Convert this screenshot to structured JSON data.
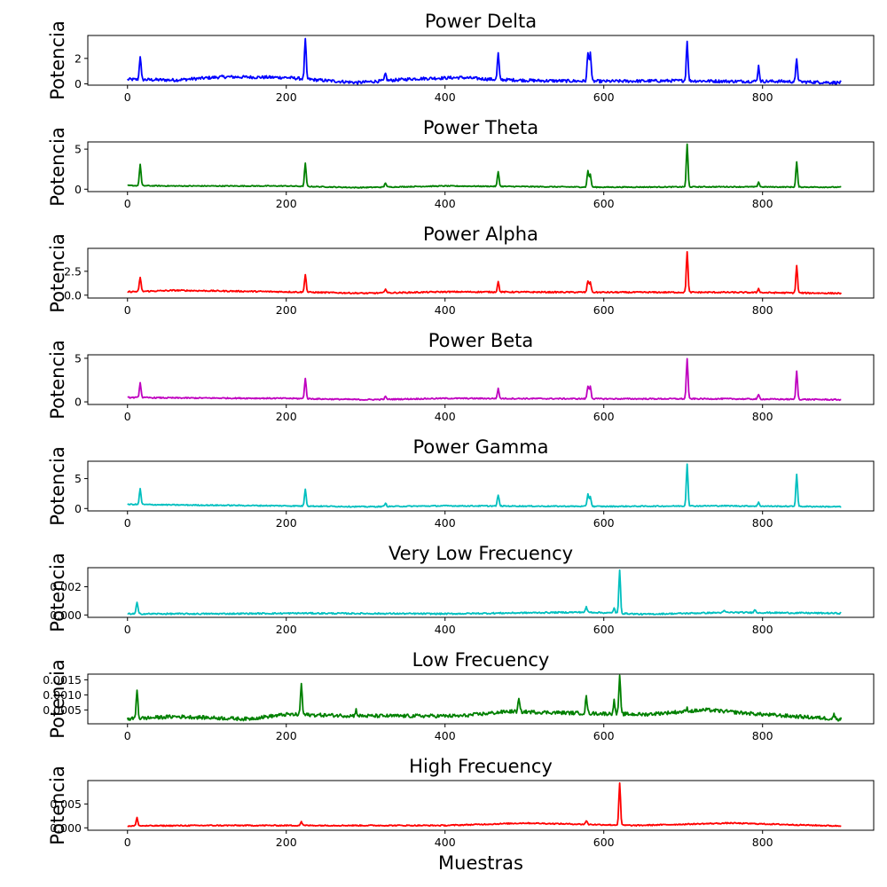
{
  "chart_data": [
    {
      "type": "line",
      "title": "Power Delta",
      "ylabel": "Potencia",
      "xlabel": "",
      "color": "#0000ff",
      "xlim": [
        -50,
        940
      ],
      "ylim": [
        -0.1,
        3.8
      ],
      "xticks": [
        {
          "v": 0,
          "label": "0"
        },
        {
          "v": 200,
          "label": "200"
        },
        {
          "v": 400,
          "label": "400"
        },
        {
          "v": 600,
          "label": "600"
        },
        {
          "v": 800,
          "label": "800"
        }
      ],
      "yticks": [
        {
          "v": 0,
          "label": "0"
        },
        {
          "v": 2,
          "label": "2"
        }
      ],
      "baseline": [
        [
          0,
          0.35
        ],
        [
          60,
          0.3
        ],
        [
          120,
          0.55
        ],
        [
          200,
          0.5
        ],
        [
          240,
          0.3
        ],
        [
          290,
          0.1
        ],
        [
          360,
          0.4
        ],
        [
          420,
          0.5
        ],
        [
          460,
          0.35
        ],
        [
          520,
          0.25
        ],
        [
          600,
          0.2
        ],
        [
          700,
          0.25
        ],
        [
          760,
          0.2
        ],
        [
          820,
          0.2
        ],
        [
          895,
          0.1
        ]
      ],
      "peaks": [
        [
          16,
          2.2
        ],
        [
          224,
          3.5
        ],
        [
          325,
          0.8
        ],
        [
          467,
          2.4
        ],
        [
          580,
          2.4
        ],
        [
          583,
          2.5
        ],
        [
          705,
          3.4
        ],
        [
          795,
          1.4
        ],
        [
          843,
          2.0
        ]
      ],
      "noise": 0.12
    },
    {
      "type": "line",
      "title": "Power Theta",
      "ylabel": "Potencia",
      "xlabel": "",
      "color": "#008000",
      "xlim": [
        -50,
        940
      ],
      "ylim": [
        -0.3,
        5.9
      ],
      "xticks": [
        {
          "v": 0,
          "label": "0"
        },
        {
          "v": 200,
          "label": "200"
        },
        {
          "v": 400,
          "label": "400"
        },
        {
          "v": 600,
          "label": "600"
        },
        {
          "v": 800,
          "label": "800"
        }
      ],
      "yticks": [
        {
          "v": 0,
          "label": "0"
        },
        {
          "v": 5,
          "label": "5"
        }
      ],
      "baseline": [
        [
          0,
          0.45
        ],
        [
          60,
          0.4
        ],
        [
          200,
          0.4
        ],
        [
          290,
          0.2
        ],
        [
          400,
          0.4
        ],
        [
          600,
          0.25
        ],
        [
          750,
          0.3
        ],
        [
          895,
          0.25
        ]
      ],
      "peaks": [
        [
          16,
          3.1
        ],
        [
          224,
          3.2
        ],
        [
          325,
          0.8
        ],
        [
          467,
          2.2
        ],
        [
          580,
          2.3
        ],
        [
          583,
          1.8
        ],
        [
          705,
          5.6
        ],
        [
          795,
          0.9
        ],
        [
          843,
          3.4
        ]
      ],
      "noise": 0.06
    },
    {
      "type": "line",
      "title": "Power Alpha",
      "ylabel": "Potencia",
      "xlabel": "",
      "color": "#ff0000",
      "xlim": [
        -50,
        940
      ],
      "ylim": [
        -0.3,
        4.9
      ],
      "xticks": [
        {
          "v": 0,
          "label": "0"
        },
        {
          "v": 200,
          "label": "200"
        },
        {
          "v": 400,
          "label": "400"
        },
        {
          "v": 600,
          "label": "600"
        },
        {
          "v": 800,
          "label": "800"
        }
      ],
      "yticks": [
        {
          "v": 0,
          "label": "0.0"
        },
        {
          "v": 2.5,
          "label": "2.5"
        }
      ],
      "baseline": [
        [
          0,
          0.35
        ],
        [
          60,
          0.5
        ],
        [
          200,
          0.35
        ],
        [
          300,
          0.2
        ],
        [
          400,
          0.35
        ],
        [
          600,
          0.3
        ],
        [
          750,
          0.3
        ],
        [
          895,
          0.2
        ]
      ],
      "peaks": [
        [
          16,
          1.9
        ],
        [
          224,
          2.2
        ],
        [
          325,
          0.7
        ],
        [
          467,
          1.4
        ],
        [
          580,
          1.5
        ],
        [
          583,
          1.4
        ],
        [
          705,
          4.6
        ],
        [
          795,
          0.7
        ],
        [
          843,
          3.1
        ]
      ],
      "noise": 0.07
    },
    {
      "type": "line",
      "title": "Power Beta",
      "ylabel": "Potencia",
      "xlabel": "",
      "color": "#bf00bf",
      "xlim": [
        -50,
        940
      ],
      "ylim": [
        -0.3,
        5.4
      ],
      "xticks": [
        {
          "v": 0,
          "label": "0"
        },
        {
          "v": 200,
          "label": "200"
        },
        {
          "v": 400,
          "label": "400"
        },
        {
          "v": 600,
          "label": "600"
        },
        {
          "v": 800,
          "label": "800"
        }
      ],
      "yticks": [
        {
          "v": 0,
          "label": "0"
        },
        {
          "v": 5,
          "label": "5"
        }
      ],
      "baseline": [
        [
          0,
          0.5
        ],
        [
          60,
          0.45
        ],
        [
          200,
          0.4
        ],
        [
          300,
          0.25
        ],
        [
          400,
          0.4
        ],
        [
          600,
          0.35
        ],
        [
          750,
          0.35
        ],
        [
          895,
          0.25
        ]
      ],
      "peaks": [
        [
          16,
          2.2
        ],
        [
          224,
          2.7
        ],
        [
          325,
          0.6
        ],
        [
          467,
          1.5
        ],
        [
          580,
          1.8
        ],
        [
          583,
          1.8
        ],
        [
          705,
          5.0
        ],
        [
          795,
          0.8
        ],
        [
          843,
          3.5
        ]
      ],
      "noise": 0.07
    },
    {
      "type": "line",
      "title": "Power Gamma",
      "ylabel": "Potencia",
      "xlabel": "",
      "color": "#00bfbf",
      "xlim": [
        -50,
        940
      ],
      "ylim": [
        -0.4,
        7.9
      ],
      "xticks": [
        {
          "v": 0,
          "label": "0"
        },
        {
          "v": 200,
          "label": "200"
        },
        {
          "v": 400,
          "label": "400"
        },
        {
          "v": 600,
          "label": "600"
        },
        {
          "v": 800,
          "label": "800"
        }
      ],
      "yticks": [
        {
          "v": 0,
          "label": "0"
        },
        {
          "v": 5,
          "label": "5"
        }
      ],
      "baseline": [
        [
          0,
          0.7
        ],
        [
          60,
          0.6
        ],
        [
          200,
          0.45
        ],
        [
          300,
          0.3
        ],
        [
          400,
          0.45
        ],
        [
          600,
          0.35
        ],
        [
          750,
          0.45
        ],
        [
          895,
          0.3
        ]
      ],
      "peaks": [
        [
          16,
          3.3
        ],
        [
          224,
          3.3
        ],
        [
          325,
          0.9
        ],
        [
          467,
          2.3
        ],
        [
          580,
          2.4
        ],
        [
          583,
          2.0
        ],
        [
          705,
          7.5
        ],
        [
          795,
          1.0
        ],
        [
          843,
          5.8
        ]
      ],
      "noise": 0.09
    },
    {
      "type": "line",
      "title": "Very Low Frecuency",
      "ylabel": "Potencia",
      "xlabel": "",
      "color": "#00bfbf",
      "xlim": [
        -50,
        940
      ],
      "ylim": [
        -0.00017,
        0.00335
      ],
      "xticks": [
        {
          "v": 0,
          "label": "0"
        },
        {
          "v": 200,
          "label": "200"
        },
        {
          "v": 400,
          "label": "400"
        },
        {
          "v": 600,
          "label": "600"
        },
        {
          "v": 800,
          "label": "800"
        }
      ],
      "yticks": [
        {
          "v": 0,
          "label": "0.000"
        },
        {
          "v": 0.002,
          "label": "0.002"
        }
      ],
      "baseline": [
        [
          0,
          8e-05
        ],
        [
          100,
          8e-05
        ],
        [
          220,
          0.00012
        ],
        [
          400,
          8e-05
        ],
        [
          500,
          0.00015
        ],
        [
          580,
          0.0002
        ],
        [
          650,
          5e-05
        ],
        [
          760,
          0.00018
        ],
        [
          895,
          0.00012
        ]
      ],
      "peaks": [
        [
          12,
          0.0009
        ],
        [
          578,
          0.00055
        ],
        [
          613,
          0.0005
        ],
        [
          620,
          0.00315
        ],
        [
          752,
          0.0003
        ],
        [
          790,
          0.0004
        ]
      ],
      "noise": 5e-05
    },
    {
      "type": "line",
      "title": "Low Frecuency",
      "ylabel": "Potencia",
      "xlabel": "",
      "color": "#008000",
      "xlim": [
        -50,
        940
      ],
      "ylim": [
        4e-05,
        0.00169
      ],
      "xticks": [
        {
          "v": 0,
          "label": "0"
        },
        {
          "v": 200,
          "label": "200"
        },
        {
          "v": 400,
          "label": "400"
        },
        {
          "v": 600,
          "label": "600"
        },
        {
          "v": 800,
          "label": "800"
        }
      ],
      "yticks": [
        {
          "v": 0.0005,
          "label": "0.0005"
        },
        {
          "v": 0.001,
          "label": "0.0010"
        },
        {
          "v": 0.0015,
          "label": "0.0015"
        }
      ],
      "baseline": [
        [
          0,
          0.0002
        ],
        [
          60,
          0.00028
        ],
        [
          150,
          0.0002
        ],
        [
          200,
          0.00035
        ],
        [
          300,
          0.0003
        ],
        [
          420,
          0.0003
        ],
        [
          480,
          0.00045
        ],
        [
          560,
          0.0004
        ],
        [
          650,
          0.00035
        ],
        [
          730,
          0.0005
        ],
        [
          800,
          0.00035
        ],
        [
          895,
          0.0002
        ]
      ],
      "peaks": [
        [
          12,
          0.0012
        ],
        [
          219,
          0.00138
        ],
        [
          288,
          0.0005
        ],
        [
          493,
          0.00085
        ],
        [
          578,
          0.00095
        ],
        [
          613,
          0.0008
        ],
        [
          620,
          0.00162
        ],
        [
          705,
          0.00055
        ],
        [
          890,
          0.00035
        ]
      ],
      "noise": 6e-05
    },
    {
      "type": "line",
      "title": "High Frecuency",
      "ylabel": "Potencia",
      "xlabel": "Muestras",
      "color": "#ff0000",
      "xlim": [
        -50,
        940
      ],
      "ylim": [
        -0.0005,
        0.0099
      ],
      "xticks": [
        {
          "v": 0,
          "label": "0"
        },
        {
          "v": 200,
          "label": "200"
        },
        {
          "v": 400,
          "label": "400"
        },
        {
          "v": 600,
          "label": "600"
        },
        {
          "v": 800,
          "label": "800"
        }
      ],
      "yticks": [
        {
          "v": 0,
          "label": "0.000"
        },
        {
          "v": 0.005,
          "label": "0.005"
        }
      ],
      "baseline": [
        [
          0,
          0.0004
        ],
        [
          100,
          0.0005
        ],
        [
          200,
          0.0005
        ],
        [
          400,
          0.0005
        ],
        [
          500,
          0.001
        ],
        [
          560,
          0.0008
        ],
        [
          640,
          0.0005
        ],
        [
          760,
          0.001
        ],
        [
          895,
          0.0004
        ]
      ],
      "peaks": [
        [
          12,
          0.0021
        ],
        [
          219,
          0.0013
        ],
        [
          578,
          0.0015
        ],
        [
          620,
          0.0093
        ]
      ],
      "noise": 0.00012
    }
  ]
}
